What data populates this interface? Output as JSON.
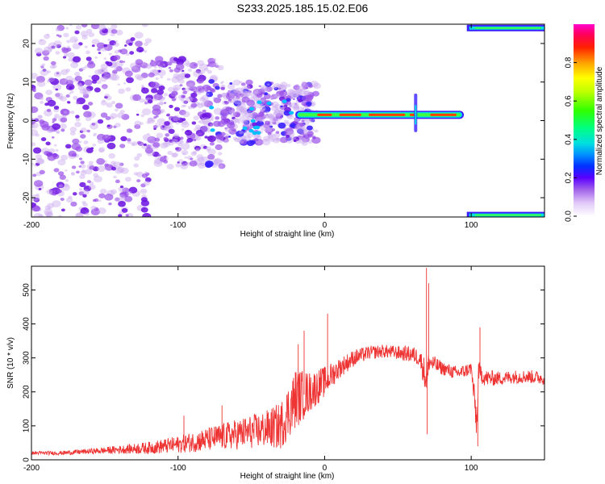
{
  "title": "S233.2025.185.15.02.E06",
  "chart_data": [
    {
      "type": "heatmap",
      "xlabel": "Height of straight line (km)",
      "ylabel": "Frequency (Hz)",
      "xlim": [
        -200,
        150
      ],
      "ylim": [
        -25,
        25
      ],
      "xticks": [
        -200,
        -100,
        0,
        100
      ],
      "yticks": [
        -20,
        -10,
        0,
        10,
        20
      ],
      "colorbar": {
        "label": "Normalized spectral amplitude",
        "range": [
          0,
          1
        ],
        "ticks": [
          "0.0",
          "0.2",
          "0.4",
          "0.6",
          "0.8"
        ],
        "colormap": [
          "#ffffff",
          "#c9a8f0",
          "#8a2be2",
          "#2a00ff",
          "#00c8ff",
          "#00ff40",
          "#ffff00",
          "#ff8000",
          "#ff0000",
          "#ff00c0"
        ]
      },
      "features": [
        {
          "name": "scatter",
          "x": [
            -200,
            -20
          ],
          "y": [
            -25,
            25
          ],
          "amplitude": 0.15
        },
        {
          "name": "ridge",
          "x": [
            -20,
            95
          ],
          "y": 1.5,
          "amplitude": 0.75
        },
        {
          "name": "upper-band",
          "x": [
            97,
            150
          ],
          "y": 24,
          "amplitude": 0.55
        },
        {
          "name": "lower-band",
          "x": [
            97,
            150
          ],
          "y": -24.5,
          "amplitude": 0.55
        }
      ]
    },
    {
      "type": "line",
      "xlabel": "Height of straight line (km)",
      "ylabel": "SNR (10 * v/v)",
      "xlim": [
        -200,
        150
      ],
      "ylim": [
        0,
        570
      ],
      "xticks": [
        -200,
        -100,
        0,
        100
      ],
      "yticks": [
        0,
        100,
        200,
        300,
        400,
        500
      ],
      "color": "#ee3333",
      "series": [
        {
          "x": [
            -200,
            -180,
            -160,
            -140,
            -120,
            -100,
            -80,
            -60,
            -40,
            -30,
            -20,
            -10,
            0,
            10,
            20,
            30,
            40,
            50,
            60,
            65,
            70,
            71,
            75,
            80,
            90,
            95,
            100,
            104,
            105,
            110,
            120,
            130,
            140,
            150
          ],
          "y": [
            20,
            20,
            25,
            30,
            35,
            45,
            60,
            75,
            90,
            100,
            180,
            200,
            230,
            270,
            300,
            315,
            320,
            315,
            310,
            300,
            230,
            290,
            280,
            270,
            255,
            260,
            270,
            100,
            260,
            240,
            240,
            245,
            245,
            240
          ],
          "noise": [
            5,
            6,
            8,
            12,
            18,
            25,
            35,
            45,
            55,
            70,
            90,
            60,
            45,
            30,
            25,
            20,
            20,
            20,
            25,
            25,
            60,
            30,
            25,
            20,
            20,
            20,
            20,
            60,
            30,
            25,
            20,
            20,
            20,
            20
          ]
        }
      ],
      "spikes": [
        {
          "x": 69.5,
          "y": 565
        },
        {
          "x": 70,
          "y": 75
        },
        {
          "x": 71,
          "y": 520
        },
        {
          "x": 104.5,
          "y": 40
        },
        {
          "x": 106,
          "y": 390
        },
        {
          "x": -14,
          "y": 380
        },
        {
          "x": -18,
          "y": 340
        },
        {
          "x": -70,
          "y": 160
        },
        {
          "x": -96,
          "y": 130
        },
        {
          "x": 2,
          "y": 430
        }
      ]
    }
  ]
}
